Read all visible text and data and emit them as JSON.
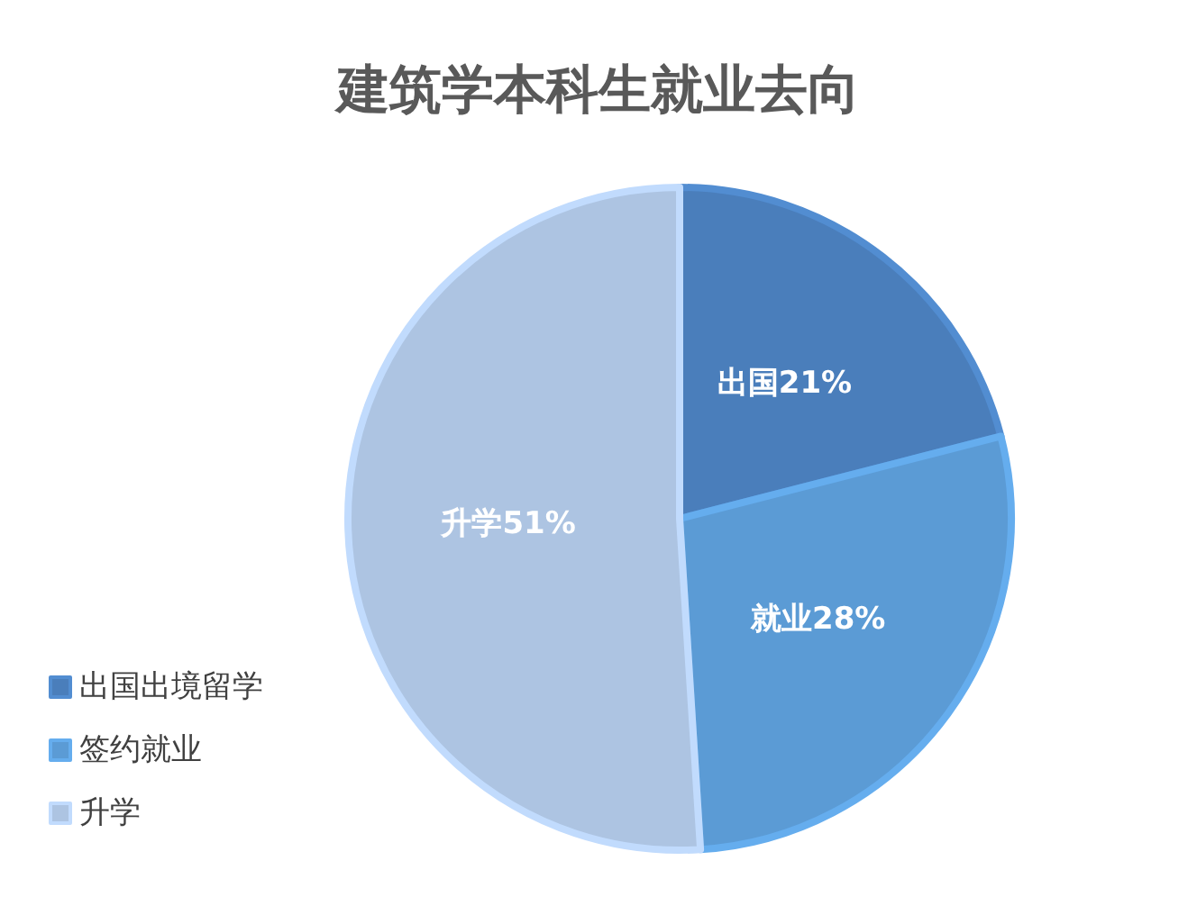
{
  "chart_data": {
    "type": "pie",
    "title": "建筑学本科生就业去向",
    "categories": [
      "出国出境留学",
      "签约就业",
      "升学"
    ],
    "values": [
      21,
      28,
      51
    ],
    "colors": [
      "#4a7ebb",
      "#5b9bd5",
      "#adc4e2"
    ],
    "value_labels": [
      "出国21%",
      "就业28%",
      "升学51%"
    ],
    "legend": "bottom left"
  }
}
